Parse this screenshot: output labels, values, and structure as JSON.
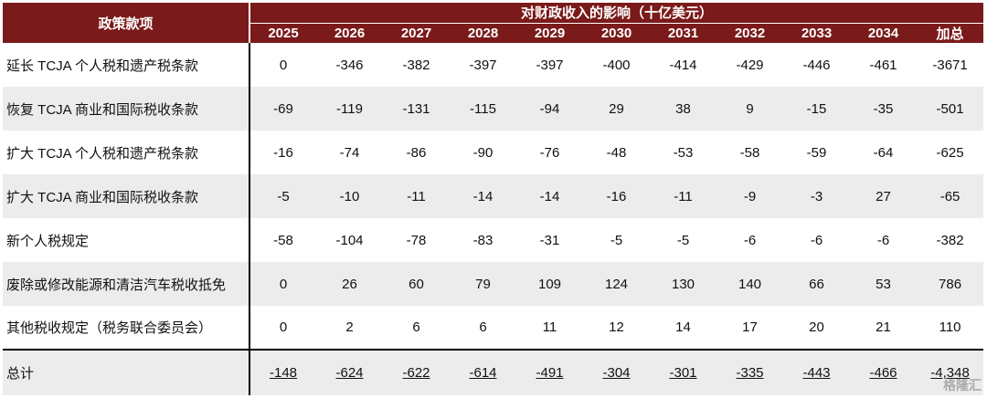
{
  "table": {
    "policy_header": "政策款项",
    "impact_header": "对财政收入的影响（十亿美元）",
    "columns": [
      "2025",
      "2026",
      "2027",
      "2028",
      "2029",
      "2030",
      "2031",
      "2032",
      "2033",
      "2034",
      "加总"
    ],
    "rows": [
      {
        "label": "延长 TCJA 个人税和遗产税条款",
        "values": [
          "0",
          "-346",
          "-382",
          "-397",
          "-397",
          "-400",
          "-414",
          "-429",
          "-446",
          "-461",
          "-3671"
        ]
      },
      {
        "label": "恢复 TCJA 商业和国际税收条款",
        "values": [
          "-69",
          "-119",
          "-131",
          "-115",
          "-94",
          "29",
          "38",
          "9",
          "-15",
          "-35",
          "-501"
        ]
      },
      {
        "label": "扩大 TCJA 个人税和遗产税条款",
        "values": [
          "-16",
          "-74",
          "-86",
          "-90",
          "-76",
          "-48",
          "-53",
          "-58",
          "-59",
          "-64",
          "-625"
        ]
      },
      {
        "label": "扩大 TCJA 商业和国际税收条款",
        "values": [
          "-5",
          "-10",
          "-11",
          "-14",
          "-14",
          "-16",
          "-11",
          "-9",
          "-3",
          "27",
          "-65"
        ]
      },
      {
        "label": "新个人税规定",
        "values": [
          "-58",
          "-104",
          "-78",
          "-83",
          "-31",
          "-5",
          "-5",
          "-6",
          "-6",
          "-6",
          "-382"
        ]
      },
      {
        "label": "废除或修改能源和清洁汽车税收抵免",
        "values": [
          "0",
          "26",
          "60",
          "79",
          "109",
          "124",
          "130",
          "140",
          "66",
          "53",
          "786"
        ]
      },
      {
        "label": "其他税收规定（税务联合委员会）",
        "values": [
          "0",
          "2",
          "6",
          "6",
          "11",
          "12",
          "14",
          "17",
          "20",
          "21",
          "110"
        ]
      }
    ],
    "total": {
      "label": "总计",
      "values": [
        "-148",
        "-624",
        "-622",
        "-614",
        "-491",
        "-304",
        "-301",
        "-335",
        "-443",
        "-466",
        "-4,348"
      ]
    }
  },
  "watermark": "格隆汇"
}
